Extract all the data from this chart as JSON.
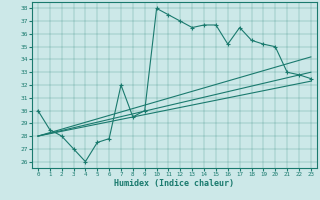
{
  "xlabel": "Humidex (Indice chaleur)",
  "bg_color": "#cce8e8",
  "line_color": "#1a7a6e",
  "xlim": [
    -0.5,
    23.5
  ],
  "ylim": [
    25.5,
    38.5
  ],
  "yticks": [
    26,
    27,
    28,
    29,
    30,
    31,
    32,
    33,
    34,
    35,
    36,
    37,
    38
  ],
  "xticks": [
    0,
    1,
    2,
    3,
    4,
    5,
    6,
    7,
    8,
    9,
    10,
    11,
    12,
    13,
    14,
    15,
    16,
    17,
    18,
    19,
    20,
    21,
    22,
    23
  ],
  "line1_x": [
    0,
    1,
    2,
    3,
    4,
    5,
    6,
    7,
    8,
    9,
    10,
    11,
    12,
    13,
    14,
    15,
    16,
    17,
    18,
    19,
    20,
    21,
    22,
    23
  ],
  "line1_y": [
    30.0,
    28.5,
    28.0,
    27.0,
    26.0,
    27.5,
    27.8,
    32.0,
    29.5,
    30.0,
    38.0,
    37.5,
    37.0,
    36.5,
    36.7,
    36.7,
    35.2,
    36.5,
    35.5,
    35.2,
    35.0,
    33.0,
    32.8,
    32.5
  ],
  "line2_x": [
    0,
    23
  ],
  "line2_y": [
    28.0,
    34.2
  ],
  "line3_x": [
    0,
    23
  ],
  "line3_y": [
    28.0,
    33.0
  ],
  "line4_x": [
    0,
    23
  ],
  "line4_y": [
    28.0,
    32.3
  ]
}
